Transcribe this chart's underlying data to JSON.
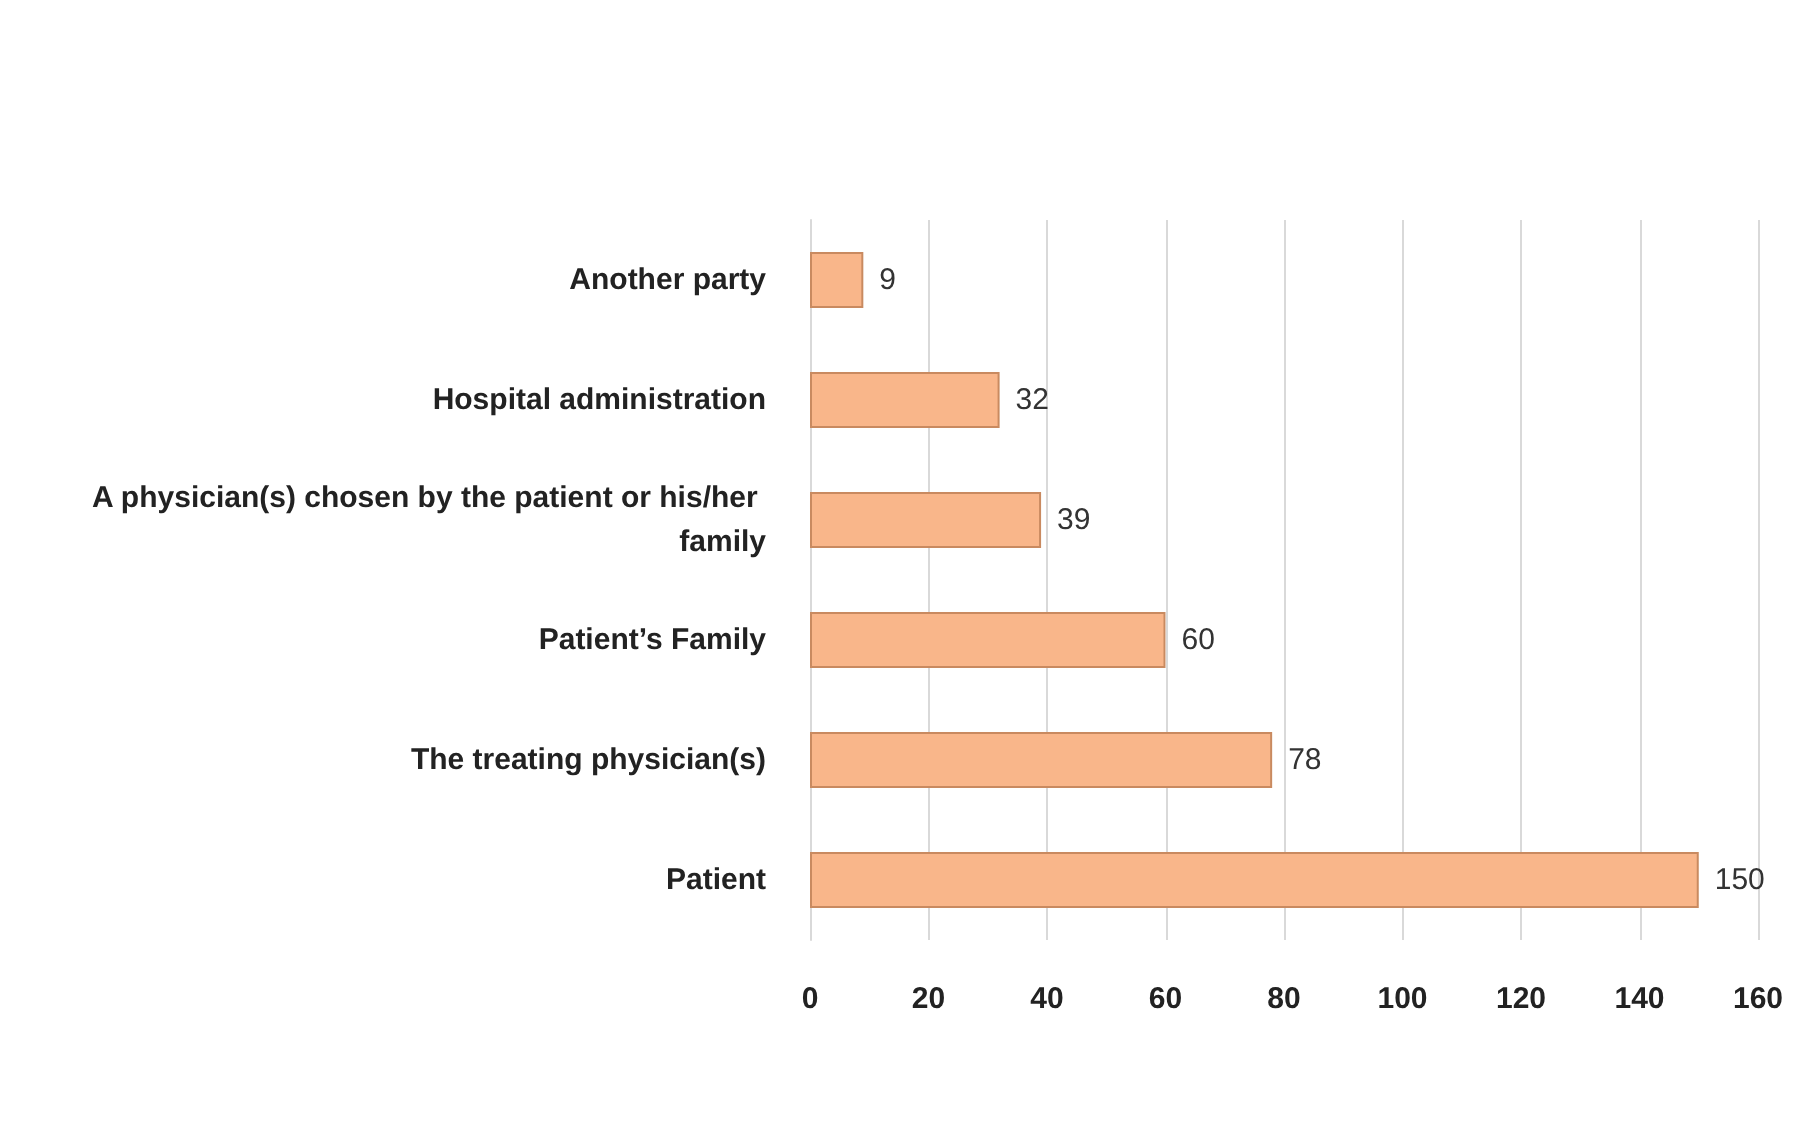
{
  "chart_data": {
    "type": "bar",
    "orientation": "horizontal",
    "categories": [
      "Another party",
      "Hospital administration",
      "A physician(s) chosen by the patient or his/her family",
      "Patient’s Family",
      "The treating physician(s)",
      "Patient"
    ],
    "values": [
      9,
      32,
      39,
      60,
      78,
      150
    ],
    "color": "#f9b68a",
    "xlim": [
      0,
      160
    ],
    "xticks": [
      0,
      20,
      40,
      60,
      80,
      100,
      120,
      140,
      160
    ],
    "grid": "x",
    "data_labels": true
  }
}
